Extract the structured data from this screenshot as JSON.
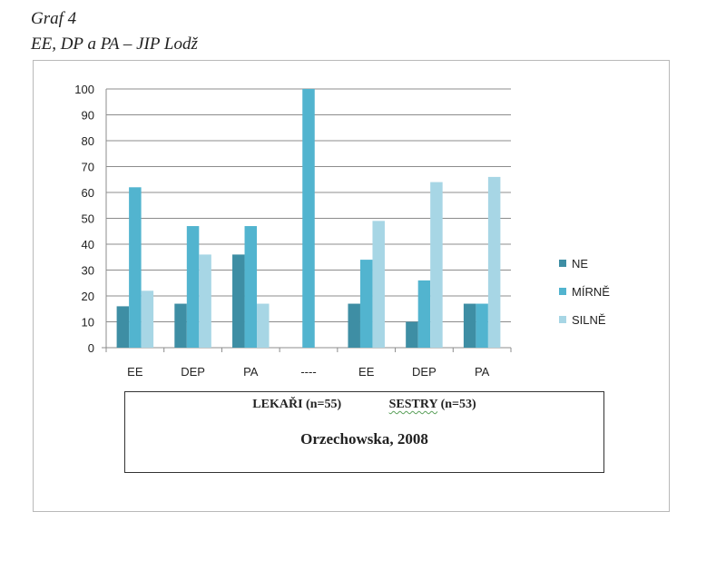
{
  "heading": {
    "line1": "Graf 4",
    "line2": "EE, DP a PA – JIP Lodž"
  },
  "chart_data": {
    "type": "bar",
    "categories": [
      "EE",
      "DEP",
      "PA",
      "----",
      "EE",
      "DEP",
      "PA"
    ],
    "series": [
      {
        "name": "NE",
        "values": [
          16,
          17,
          36,
          0,
          17,
          10,
          17
        ]
      },
      {
        "name": "MÍRNĚ",
        "values": [
          62,
          47,
          47,
          100,
          34,
          26,
          17
        ]
      },
      {
        "name": "SILNĚ",
        "values": [
          22,
          36,
          17,
          0,
          49,
          64,
          66
        ]
      }
    ],
    "colors": [
      "#3e8ea4",
      "#52b4cf",
      "#a7d6e5"
    ],
    "ylim": [
      0,
      100
    ],
    "yticks": [
      0,
      10,
      20,
      30,
      40,
      50,
      60,
      70,
      80,
      90,
      100
    ],
    "grid": true,
    "legend": "right"
  },
  "note": {
    "lekari": "LEKAŘI (n=55)",
    "sestry_word": "SESTRY",
    "sestry_n": "(n=53)",
    "source": "Orzechowska, 2008"
  }
}
